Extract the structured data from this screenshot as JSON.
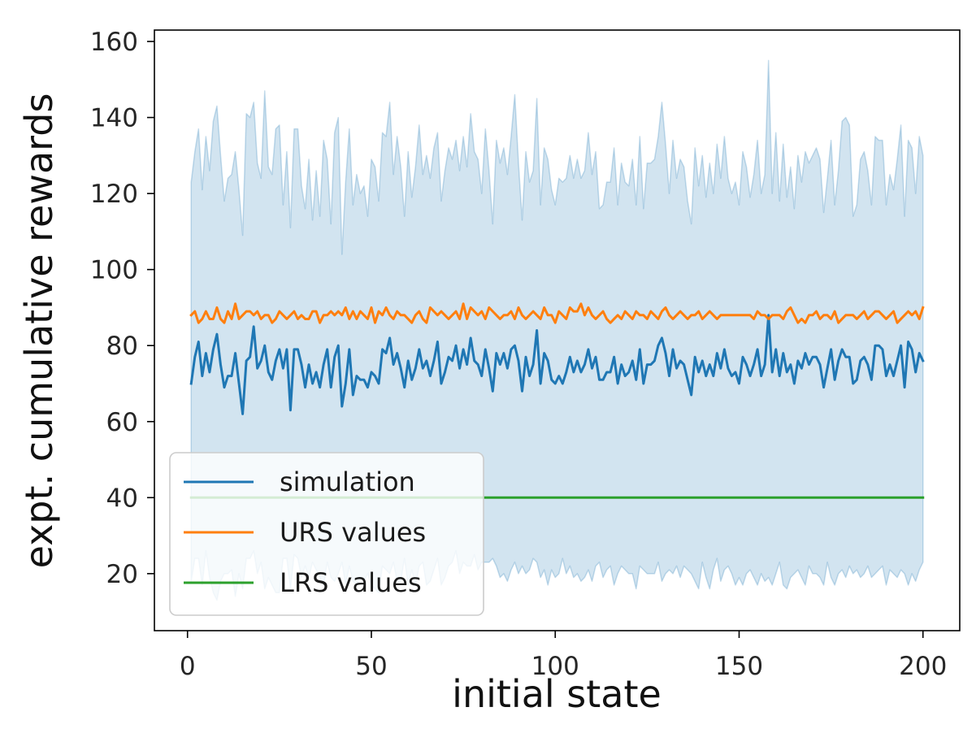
{
  "chart_data": {
    "type": "line",
    "title": "",
    "xlabel": "initial state",
    "ylabel": "expt. cumulative rewards",
    "xlim": [
      -9,
      210
    ],
    "ylim": [
      5,
      163
    ],
    "x_ticks": [
      0,
      50,
      100,
      150,
      200
    ],
    "y_ticks": [
      20,
      40,
      60,
      80,
      100,
      120,
      140,
      160
    ],
    "x_tick_labels": [
      "0",
      "50",
      "100",
      "150",
      "200"
    ],
    "y_tick_labels": [
      "20",
      "40",
      "60",
      "80",
      "100",
      "120",
      "140",
      "160"
    ],
    "legend_position": "lower-left",
    "grid": false,
    "x": [
      1,
      2,
      3,
      4,
      5,
      6,
      7,
      8,
      9,
      10,
      11,
      12,
      13,
      14,
      15,
      16,
      17,
      18,
      19,
      20,
      21,
      22,
      23,
      24,
      25,
      26,
      27,
      28,
      29,
      30,
      31,
      32,
      33,
      34,
      35,
      36,
      37,
      38,
      39,
      40,
      41,
      42,
      43,
      44,
      45,
      46,
      47,
      48,
      49,
      50,
      51,
      52,
      53,
      54,
      55,
      56,
      57,
      58,
      59,
      60,
      61,
      62,
      63,
      64,
      65,
      66,
      67,
      68,
      69,
      70,
      71,
      72,
      73,
      74,
      75,
      76,
      77,
      78,
      79,
      80,
      81,
      82,
      83,
      84,
      85,
      86,
      87,
      88,
      89,
      90,
      91,
      92,
      93,
      94,
      95,
      96,
      97,
      98,
      99,
      100,
      101,
      102,
      103,
      104,
      105,
      106,
      107,
      108,
      109,
      110,
      111,
      112,
      113,
      114,
      115,
      116,
      117,
      118,
      119,
      120,
      121,
      122,
      123,
      124,
      125,
      126,
      127,
      128,
      129,
      130,
      131,
      132,
      133,
      134,
      135,
      136,
      137,
      138,
      139,
      140,
      141,
      142,
      143,
      144,
      145,
      146,
      147,
      148,
      149,
      150,
      151,
      152,
      153,
      154,
      155,
      156,
      157,
      158,
      159,
      160,
      161,
      162,
      163,
      164,
      165,
      166,
      167,
      168,
      169,
      170,
      171,
      172,
      173,
      174,
      175,
      176,
      177,
      178,
      179,
      180,
      181,
      182,
      183,
      184,
      185,
      186,
      187,
      188,
      189,
      190,
      191,
      192,
      193,
      194,
      195,
      196,
      197,
      198,
      199,
      200
    ],
    "series": [
      {
        "name": "simulation",
        "color": "#1f77b4",
        "values": [
          70,
          77,
          81,
          72,
          78,
          73,
          79,
          83,
          75,
          69,
          72,
          72,
          78,
          70,
          62,
          76,
          77,
          85,
          74,
          76,
          80,
          73,
          71,
          76,
          79,
          74,
          79,
          63,
          79,
          79,
          75,
          69,
          75,
          70,
          73,
          69,
          75,
          79,
          69,
          77,
          80,
          64,
          70,
          79,
          67,
          72,
          71,
          71,
          69,
          73,
          72,
          70,
          79,
          78,
          82,
          75,
          78,
          74,
          69,
          76,
          71,
          74,
          79,
          74,
          76,
          72,
          76,
          81,
          70,
          73,
          77,
          76,
          80,
          74,
          79,
          75,
          82,
          76,
          75,
          72,
          79,
          74,
          68,
          78,
          75,
          78,
          74,
          79,
          80,
          76,
          68,
          77,
          72,
          75,
          84,
          70,
          78,
          76,
          71,
          70,
          72,
          70,
          73,
          77,
          73,
          76,
          73,
          75,
          79,
          74,
          77,
          71,
          71,
          73,
          73,
          77,
          70,
          75,
          72,
          73,
          76,
          71,
          79,
          70,
          75,
          75,
          76,
          80,
          82,
          78,
          72,
          79,
          74,
          76,
          75,
          71,
          67,
          77,
          73,
          76,
          72,
          75,
          72,
          78,
          74,
          79,
          74,
          72,
          73,
          70,
          77,
          75,
          72,
          75,
          79,
          72,
          75,
          88,
          73,
          79,
          72,
          78,
          73,
          75,
          70,
          76,
          74,
          78,
          75,
          77,
          77,
          75,
          69,
          74,
          79,
          71,
          76,
          79,
          77,
          77,
          70,
          71,
          76,
          77,
          75,
          71,
          80,
          80,
          79,
          72,
          75,
          72,
          76,
          80,
          69,
          81,
          79,
          73,
          78,
          76
        ]
      },
      {
        "name": "URS values",
        "color": "#ff7f0e",
        "values": [
          88,
          89,
          86,
          87,
          89,
          87,
          87,
          90,
          87,
          86,
          89,
          87,
          91,
          87,
          88,
          89,
          89,
          88,
          89,
          87,
          88,
          88,
          86,
          87,
          89,
          88,
          87,
          88,
          89,
          87,
          88,
          87,
          87,
          89,
          89,
          86,
          88,
          88,
          89,
          88,
          89,
          88,
          90,
          87,
          89,
          87,
          89,
          88,
          87,
          90,
          86,
          89,
          88,
          90,
          88,
          87,
          89,
          88,
          88,
          87,
          86,
          88,
          89,
          87,
          86,
          90,
          89,
          88,
          89,
          88,
          87,
          88,
          89,
          87,
          91,
          87,
          90,
          89,
          88,
          89,
          87,
          90,
          89,
          88,
          87,
          88,
          88,
          89,
          87,
          90,
          88,
          87,
          88,
          89,
          88,
          87,
          90,
          88,
          88,
          86,
          89,
          88,
          87,
          90,
          89,
          89,
          91,
          88,
          90,
          88,
          87,
          88,
          89,
          87,
          86,
          87,
          88,
          87,
          89,
          88,
          87,
          89,
          88,
          88,
          87,
          89,
          88,
          87,
          89,
          90,
          88,
          87,
          88,
          89,
          88,
          87,
          88,
          88,
          89,
          87,
          88,
          89,
          88,
          87,
          88,
          88,
          88,
          88,
          88,
          88,
          88,
          88,
          88,
          87,
          89,
          88,
          88,
          87,
          88,
          88,
          88,
          87,
          89,
          90,
          88,
          86,
          87,
          86,
          88,
          88,
          89,
          87,
          88,
          88,
          87,
          89,
          86,
          87,
          88,
          88,
          88,
          87,
          88,
          89,
          87,
          88,
          89,
          89,
          88,
          87,
          88,
          89,
          86,
          87,
          88,
          89,
          88,
          89,
          87,
          90
        ]
      },
      {
        "name": "LRS values",
        "color": "#2ca02c",
        "values": [
          40,
          40,
          40,
          40,
          40,
          40,
          40,
          40,
          40,
          40,
          40,
          40,
          40,
          40,
          40,
          40,
          40,
          40,
          40,
          40,
          40,
          40,
          40,
          40,
          40,
          40,
          40,
          40,
          40,
          40,
          40,
          40,
          40,
          40,
          40,
          40,
          40,
          40,
          40,
          40,
          40,
          40,
          40,
          40,
          40,
          40,
          40,
          40,
          40,
          40,
          40,
          40,
          40,
          40,
          40,
          40,
          40,
          40,
          40,
          40,
          40,
          40,
          40,
          40,
          40,
          40,
          40,
          40,
          40,
          40,
          40,
          40,
          40,
          40,
          40,
          40,
          40,
          40,
          40,
          40,
          40,
          40,
          40,
          40,
          40,
          40,
          40,
          40,
          40,
          40,
          40,
          40,
          40,
          40,
          40,
          40,
          40,
          40,
          40,
          40,
          40,
          40,
          40,
          40,
          40,
          40,
          40,
          40,
          40,
          40,
          40,
          40,
          40,
          40,
          40,
          40,
          40,
          40,
          40,
          40,
          40,
          40,
          40,
          40,
          40,
          40,
          40,
          40,
          40,
          40,
          40,
          40,
          40,
          40,
          40,
          40,
          40,
          40,
          40,
          40,
          40,
          40,
          40,
          40,
          40,
          40,
          40,
          40,
          40,
          40,
          40,
          40,
          40,
          40,
          40,
          40,
          40,
          40,
          40,
          40,
          40,
          40,
          40,
          40,
          40,
          40,
          40,
          40,
          40,
          40,
          40,
          40,
          40,
          40,
          40,
          40,
          40,
          40,
          40,
          40,
          40,
          40,
          40,
          40,
          40,
          40,
          40,
          40,
          40,
          40,
          40,
          40,
          40,
          40,
          40,
          40,
          40,
          40,
          40,
          40
        ]
      }
    ],
    "band": {
      "color": "#1f77b4",
      "upper": [
        123,
        131,
        137,
        121,
        135,
        126,
        139,
        143,
        130,
        118,
        124,
        125,
        131,
        121,
        109,
        141,
        140,
        144,
        128,
        124,
        147,
        127,
        125,
        137,
        138,
        117,
        131,
        111,
        137,
        137,
        122,
        116,
        129,
        113,
        126,
        114,
        134,
        129,
        112,
        136,
        140,
        104,
        123,
        137,
        117,
        125,
        120,
        122,
        114,
        129,
        127,
        118,
        136,
        135,
        144,
        125,
        135,
        127,
        114,
        131,
        119,
        127,
        138,
        125,
        130,
        124,
        132,
        136,
        118,
        126,
        132,
        129,
        134,
        126,
        135,
        127,
        141,
        131,
        129,
        120,
        137,
        126,
        112,
        134,
        128,
        132,
        125,
        135,
        146,
        128,
        113,
        131,
        123,
        126,
        145,
        117,
        132,
        129,
        121,
        117,
        124,
        123,
        124,
        130,
        124,
        129,
        124,
        126,
        136,
        125,
        131,
        116,
        117,
        123,
        123,
        132,
        117,
        128,
        123,
        122,
        129,
        117,
        135,
        116,
        128,
        128,
        129,
        135,
        144,
        133,
        120,
        134,
        124,
        129,
        127,
        118,
        112,
        132,
        122,
        130,
        119,
        128,
        120,
        133,
        124,
        135,
        124,
        120,
        123,
        117,
        131,
        127,
        119,
        125,
        134,
        120,
        125,
        155,
        120,
        136,
        118,
        133,
        119,
        127,
        116,
        130,
        123,
        131,
        128,
        130,
        132,
        129,
        115,
        124,
        134,
        117,
        126,
        139,
        140,
        138,
        114,
        117,
        129,
        131,
        126,
        117,
        135,
        134,
        134,
        117,
        125,
        121,
        129,
        138,
        114,
        134,
        132,
        120,
        135,
        130
      ],
      "lower": [
        18,
        24,
        24,
        17,
        26,
        19,
        15,
        13,
        18,
        20,
        20,
        21,
        14,
        20,
        16,
        24,
        24,
        26,
        20,
        23,
        16,
        19,
        17,
        15,
        15,
        24,
        24,
        16,
        25,
        24,
        19,
        22,
        19,
        23,
        21,
        19,
        17,
        23,
        19,
        18,
        20,
        23,
        17,
        22,
        18,
        17,
        19,
        18,
        20,
        17,
        16,
        15,
        22,
        21,
        20,
        23,
        18,
        18,
        24,
        17,
        21,
        17,
        22,
        23,
        17,
        18,
        21,
        24,
        17,
        19,
        22,
        23,
        26,
        20,
        23,
        22,
        22,
        25,
        21,
        23,
        23,
        23,
        24,
        22,
        19,
        20,
        18,
        21,
        23,
        20,
        22,
        20,
        21,
        24,
        23,
        19,
        21,
        17,
        21,
        19,
        20,
        24,
        20,
        22,
        19,
        20,
        18,
        19,
        21,
        18,
        22,
        23,
        19,
        21,
        22,
        17,
        20,
        22,
        21,
        20,
        20,
        16,
        22,
        21,
        20,
        20,
        20,
        23,
        18,
        20,
        21,
        20,
        22,
        19,
        22,
        21,
        20,
        18,
        16,
        23,
        19,
        16,
        21,
        24,
        18,
        21,
        22,
        20,
        17,
        19,
        17,
        20,
        21,
        19,
        17,
        20,
        18,
        19,
        17,
        20,
        23,
        17,
        16,
        19,
        20,
        21,
        19,
        17,
        22,
        20,
        20,
        19,
        17,
        23,
        19,
        17,
        20,
        21,
        19,
        22,
        20,
        21,
        19,
        20,
        22,
        19,
        20,
        21,
        22,
        17,
        21,
        20,
        19,
        21,
        20,
        17,
        20,
        18,
        21,
        23
      ]
    }
  }
}
